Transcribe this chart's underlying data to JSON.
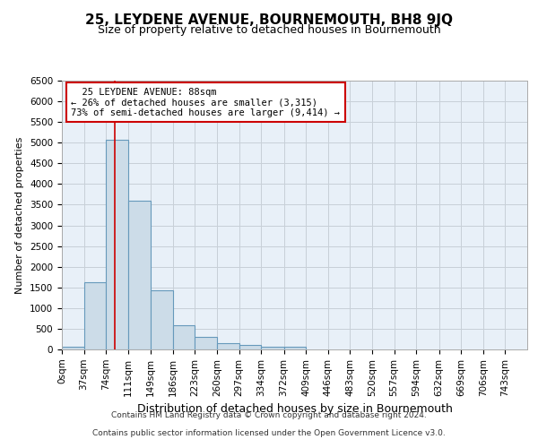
{
  "title": "25, LEYDENE AVENUE, BOURNEMOUTH, BH8 9JQ",
  "subtitle": "Size of property relative to detached houses in Bournemouth",
  "xlabel": "Distribution of detached houses by size in Bournemouth",
  "ylabel": "Number of detached properties",
  "footer_line1": "Contains HM Land Registry data © Crown copyright and database right 2024.",
  "footer_line2": "Contains public sector information licensed under the Open Government Licence v3.0.",
  "bin_labels": [
    "0sqm",
    "37sqm",
    "74sqm",
    "111sqm",
    "149sqm",
    "186sqm",
    "223sqm",
    "260sqm",
    "297sqm",
    "334sqm",
    "372sqm",
    "409sqm",
    "446sqm",
    "483sqm",
    "520sqm",
    "557sqm",
    "594sqm",
    "632sqm",
    "669sqm",
    "706sqm",
    "743sqm"
  ],
  "bin_edges": [
    0,
    37,
    74,
    111,
    149,
    186,
    223,
    260,
    297,
    334,
    372,
    409,
    446,
    483,
    520,
    557,
    594,
    632,
    669,
    706,
    743,
    780
  ],
  "bar_values": [
    65,
    1630,
    5080,
    3600,
    1420,
    590,
    310,
    155,
    110,
    60,
    55,
    0,
    0,
    0,
    0,
    0,
    0,
    0,
    0,
    0,
    0
  ],
  "bar_color": "#ccdce8",
  "bar_edge_color": "#6699bb",
  "property_size": 88,
  "red_line_color": "#cc0000",
  "annotation_text": "  25 LEYDENE AVENUE: 88sqm\n← 26% of detached houses are smaller (3,315)\n73% of semi-detached houses are larger (9,414) →",
  "annotation_box_color": "white",
  "annotation_box_edge_color": "#cc0000",
  "ylim": [
    0,
    6500
  ],
  "yticks": [
    0,
    500,
    1000,
    1500,
    2000,
    2500,
    3000,
    3500,
    4000,
    4500,
    5000,
    5500,
    6000,
    6500
  ],
  "bg_color": "#e8f0f8",
  "grid_color": "#c8d0d8",
  "title_fontsize": 11,
  "subtitle_fontsize": 9,
  "xlabel_fontsize": 9,
  "ylabel_fontsize": 8,
  "tick_fontsize": 7.5,
  "footer_fontsize": 6.5
}
